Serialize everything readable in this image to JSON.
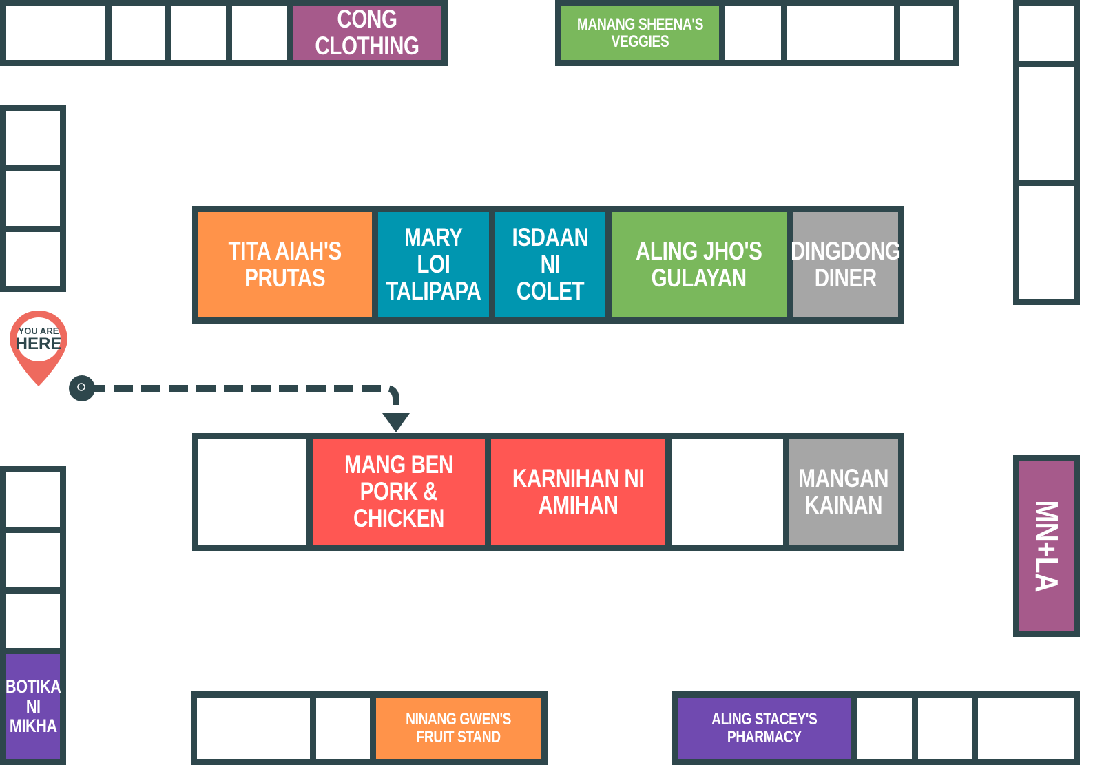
{
  "colors": {
    "outline": "#2e474c",
    "orange": "#ff934a",
    "teal": "#0096b0",
    "green": "#7ab85c",
    "gray": "#a6a6a6",
    "red": "#ff5753",
    "plum": "#a65a8b",
    "violet": "#704ab0",
    "pin": "#ee6a5e"
  },
  "you_are_here": {
    "line1": "YOU ARE",
    "line2": "HERE"
  },
  "shops": {
    "cong_clothing": "CONG CLOTHING",
    "manang_sheena": "MANANG SHEENA'S\nVEGGIES",
    "tita_aiah": "TITA AIAH'S\nPRUTAS",
    "mary_loi": "MARY LOI\nTALIPAPA",
    "isdaan": "ISDAAN\nNI COLET",
    "aling_jho": "ALING JHO'S\nGULAYAN",
    "dingdong": "DINGDONG\nDINER",
    "mang_ben": "MANG BEN\nPORK & CHICKEN",
    "karnihan": "KARNIHAN NI\nAMIHAN",
    "mangan": "MANGAN\nKAINAN",
    "mnla": "MN+LA",
    "botika": "BOTIKA\nNI\nMIKHA",
    "ninang_gwen": "NINANG GWEN'S\nFRUIT STAND",
    "aling_stacey": "ALING STACEY'S\nPHARMACY"
  }
}
